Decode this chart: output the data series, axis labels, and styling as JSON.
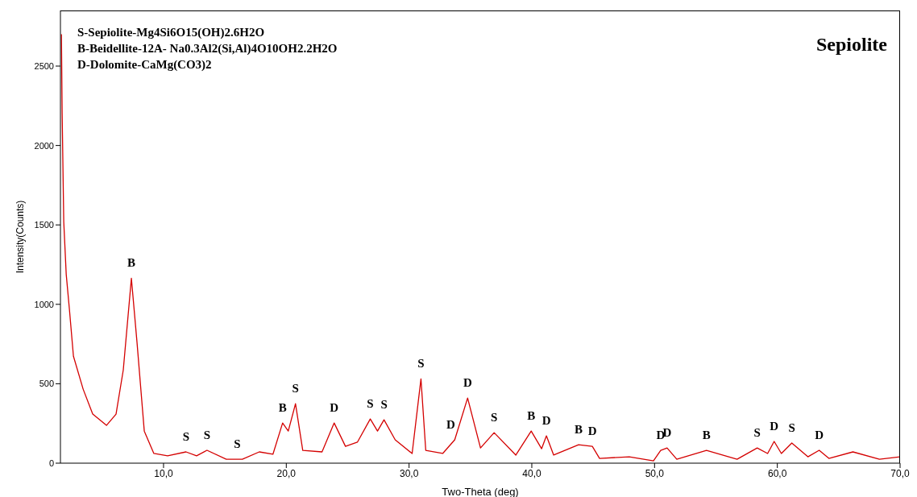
{
  "chart_data": {
    "type": "line",
    "title": "Sepiolite",
    "xlabel": "Two-Theta (deg)",
    "ylabel": "Intensity(Counts)",
    "annotations": [
      "S-Sepiolite-Mg4Si6O15(OH)2.6H2O",
      "B-Beidellite-12A- Na0.3Al2(Si,Al)4O10OH2.2H2O",
      "D-Dolomite-CaMg(CO3)2",
      {
        "text": "B",
        "x": 7.38,
        "y": 1164
      },
      {
        "text": "S",
        "x": 11.83,
        "y": 71
      },
      {
        "text": "S",
        "x": 13.54,
        "y": 81
      },
      {
        "text": "S",
        "x": 16.0,
        "y": 25
      },
      {
        "text": "B",
        "x": 19.7,
        "y": 253
      },
      {
        "text": "S",
        "x": 20.75,
        "y": 374
      },
      {
        "text": "D",
        "x": 23.9,
        "y": 253
      },
      {
        "text": "S",
        "x": 26.84,
        "y": 278
      },
      {
        "text": "S",
        "x": 27.96,
        "y": 273
      },
      {
        "text": "S",
        "x": 30.97,
        "y": 531
      },
      {
        "text": "D",
        "x": 33.4,
        "y": 147
      },
      {
        "text": "D",
        "x": 34.77,
        "y": 410
      },
      {
        "text": "S",
        "x": 36.93,
        "y": 192
      },
      {
        "text": "B",
        "x": 39.95,
        "y": 202
      },
      {
        "text": "D",
        "x": 41.19,
        "y": 172
      },
      {
        "text": "B",
        "x": 43.81,
        "y": 116
      },
      {
        "text": "D",
        "x": 44.93,
        "y": 106
      },
      {
        "text": "D",
        "x": 50.5,
        "y": 81
      },
      {
        "text": "D",
        "x": 51.02,
        "y": 96
      },
      {
        "text": "B",
        "x": 54.23,
        "y": 81
      },
      {
        "text": "S",
        "x": 58.36,
        "y": 96
      },
      {
        "text": "D",
        "x": 59.74,
        "y": 137
      },
      {
        "text": "S",
        "x": 61.18,
        "y": 127
      },
      {
        "text": "D",
        "x": 63.41,
        "y": 81
      }
    ],
    "x": [
      1.68,
      1.74,
      1.87,
      2.07,
      2.33,
      2.66,
      3.45,
      4.23,
      5.35,
      6.13,
      6.72,
      7.38,
      7.84,
      8.43,
      9.21,
      10.33,
      11.83,
      12.69,
      13.54,
      15.11,
      16.42,
      17.8,
      18.91,
      19.7,
      20.16,
      20.75,
      21.34,
      22.91,
      23.9,
      24.82,
      25.79,
      26.84,
      27.43,
      27.96,
      28.87,
      30.25,
      30.97,
      31.36,
      32.74,
      33.72,
      34.77,
      35.82,
      36.93,
      38.7,
      39.95,
      40.8,
      41.19,
      41.78,
      43.81,
      44.93,
      45.52,
      47.94,
      49.91,
      50.5,
      51.02,
      51.81,
      54.23,
      56.72,
      58.36,
      59.21,
      59.74,
      60.33,
      61.18,
      62.49,
      63.41,
      64.2,
      66.16,
      68.32,
      70
    ],
    "series": [
      {
        "color": "#d40000",
        "values": [
          2700,
          2200,
          1520,
          1190,
          970,
          673,
          466,
          309,
          238,
          309,
          587,
          1164,
          759,
          202,
          61,
          46,
          71,
          46,
          81,
          25,
          25,
          71,
          56,
          253,
          202,
          374,
          81,
          71,
          253,
          106,
          132,
          278,
          202,
          273,
          147,
          61,
          531,
          81,
          61,
          147,
          410,
          96,
          192,
          51,
          202,
          91,
          172,
          51,
          116,
          106,
          30,
          40,
          15,
          81,
          96,
          25,
          81,
          25,
          96,
          61,
          137,
          61,
          127,
          40,
          81,
          30,
          71,
          25,
          40
        ]
      }
    ],
    "xlim": [
      1.6,
      70
    ],
    "xticks": [
      {
        "value": 10,
        "label": "10,0"
      },
      {
        "value": 20,
        "label": "20,0"
      },
      {
        "value": 30,
        "label": "30,0"
      },
      {
        "value": 40,
        "label": "40,0"
      },
      {
        "value": 50,
        "label": "50,0"
      },
      {
        "value": 60,
        "label": "60,0"
      },
      {
        "value": 70,
        "label": "70,0"
      }
    ],
    "ylim": [
      0,
      2850
    ],
    "yticks": [
      0,
      500,
      1000,
      1500,
      2000,
      2500
    ],
    "grid": false,
    "legend": false,
    "marker": "none",
    "line_style": "solid"
  }
}
